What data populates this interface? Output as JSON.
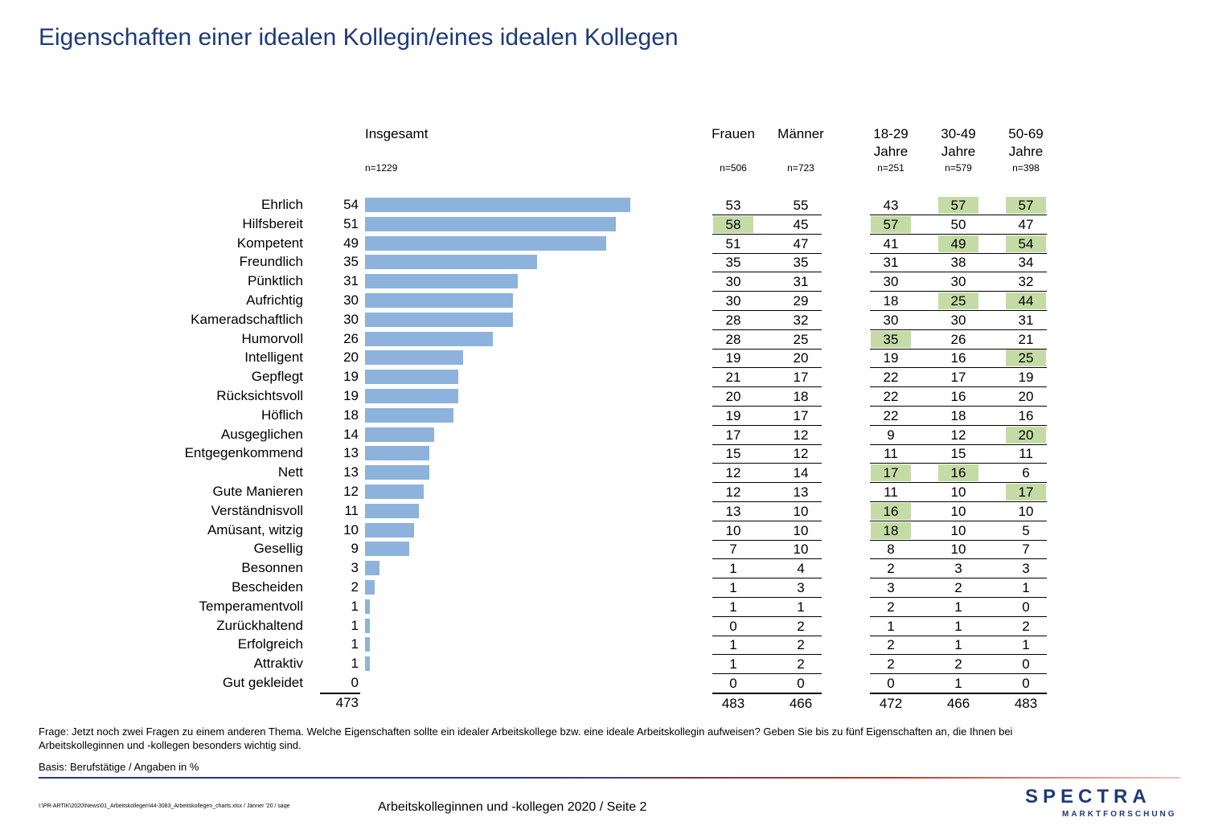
{
  "title": "Eigenschaften einer idealen Kollegin/eines idealen Kollegen",
  "headers": {
    "total": "Insgesamt",
    "total_n": "n=1229",
    "frauen": "Frauen",
    "frauen_n": "n=506",
    "maenner": "Männer",
    "maenner_n": "n=723",
    "a1_line1": "18-29",
    "a1_line2": "Jahre",
    "a1_n": "n=251",
    "a2_line1": "30-49",
    "a2_line2": "Jahre",
    "a2_n": "n=579",
    "a3_line1": "50-69",
    "a3_line2": "Jahre",
    "a3_n": "n=398"
  },
  "chart_data": {
    "type": "bar",
    "orientation": "horizontal",
    "title": "Eigenschaften einer idealen Kollegin/eines idealen Kollegen",
    "categories": [
      "Ehrlich",
      "Hilfsbereit",
      "Kompetent",
      "Freundlich",
      "Pünktlich",
      "Aufrichtig",
      "Kameradschaftlich",
      "Humorvoll",
      "Intelligent",
      "Gepflegt",
      "Rücksichtsvoll",
      "Höflich",
      "Ausgeglichen",
      "Entgegenkommend",
      "Nett",
      "Gute Manieren",
      "Verständnisvoll",
      "Amüsant, witzig",
      "Gesellig",
      "Besonnen",
      "Bescheiden",
      "Temperamentvoll",
      "Zurückhaltend",
      "Erfolgreich",
      "Attraktiv",
      "Gut gekleidet"
    ],
    "values": [
      54,
      51,
      49,
      35,
      31,
      30,
      30,
      26,
      20,
      19,
      19,
      18,
      14,
      13,
      13,
      12,
      11,
      10,
      9,
      3,
      2,
      1,
      1,
      1,
      1,
      0
    ],
    "bar_color": "#8db3dc",
    "highlight_color": "#c5dba6",
    "table": {
      "frauen": [
        53,
        58,
        51,
        35,
        30,
        30,
        28,
        28,
        19,
        21,
        20,
        19,
        17,
        15,
        12,
        12,
        13,
        10,
        7,
        1,
        1,
        1,
        0,
        1,
        1,
        0
      ],
      "maenner": [
        55,
        45,
        47,
        35,
        31,
        29,
        32,
        25,
        20,
        17,
        18,
        17,
        12,
        12,
        14,
        13,
        10,
        10,
        10,
        4,
        3,
        1,
        2,
        2,
        2,
        0
      ],
      "age_18_29": [
        43,
        57,
        41,
        31,
        30,
        18,
        30,
        35,
        19,
        22,
        22,
        22,
        9,
        11,
        17,
        11,
        16,
        18,
        8,
        2,
        3,
        2,
        1,
        2,
        2,
        0
      ],
      "age_30_49": [
        57,
        50,
        49,
        38,
        30,
        25,
        30,
        26,
        16,
        17,
        16,
        18,
        12,
        15,
        16,
        10,
        10,
        10,
        10,
        3,
        2,
        1,
        1,
        1,
        2,
        1
      ],
      "age_50_69": [
        57,
        47,
        54,
        34,
        32,
        44,
        31,
        21,
        25,
        19,
        20,
        16,
        20,
        11,
        6,
        17,
        10,
        5,
        7,
        3,
        1,
        0,
        2,
        1,
        0,
        0
      ]
    },
    "highlighted": {
      "frauen": [
        1
      ],
      "maenner": [],
      "age_18_29": [
        1,
        7,
        14,
        16,
        17
      ],
      "age_30_49": [
        0,
        2,
        5,
        14
      ],
      "age_50_69": [
        0,
        2,
        5,
        8,
        12,
        15
      ]
    },
    "totals": {
      "total": 473,
      "frauen": 483,
      "maenner": 466,
      "age_18_29": 472,
      "age_30_49": 466,
      "age_50_69": 483
    }
  },
  "footnotes": {
    "frage_line1": "Frage: Jetzt noch zwei Fragen zu einem anderen Thema. Welche Eigenschaften sollte ein idealer Arbeitskollege bzw. eine ideale Arbeitskollegin aufweisen? Geben Sie bis zu fünf Eigenschaften an, die Ihnen bei",
    "frage_line2": "Arbeitskolleginnen und -kollegen besonders wichtig sind.",
    "basis": "Basis: Berufstätige / Angaben in %"
  },
  "footer": {
    "path": "I:\\PR-ARTIK\\2020\\News\\01_Arbeitskollegen\\44-3083_Arbeitskollegen_charts.xlsx / Jänner '20 / saqe",
    "page": "Arbeitskolleginnen und -kollegen 2020  /  Seite  2",
    "logo_top": "SPECTRA",
    "logo_bottom": "MARKTFORSCHUNG"
  }
}
